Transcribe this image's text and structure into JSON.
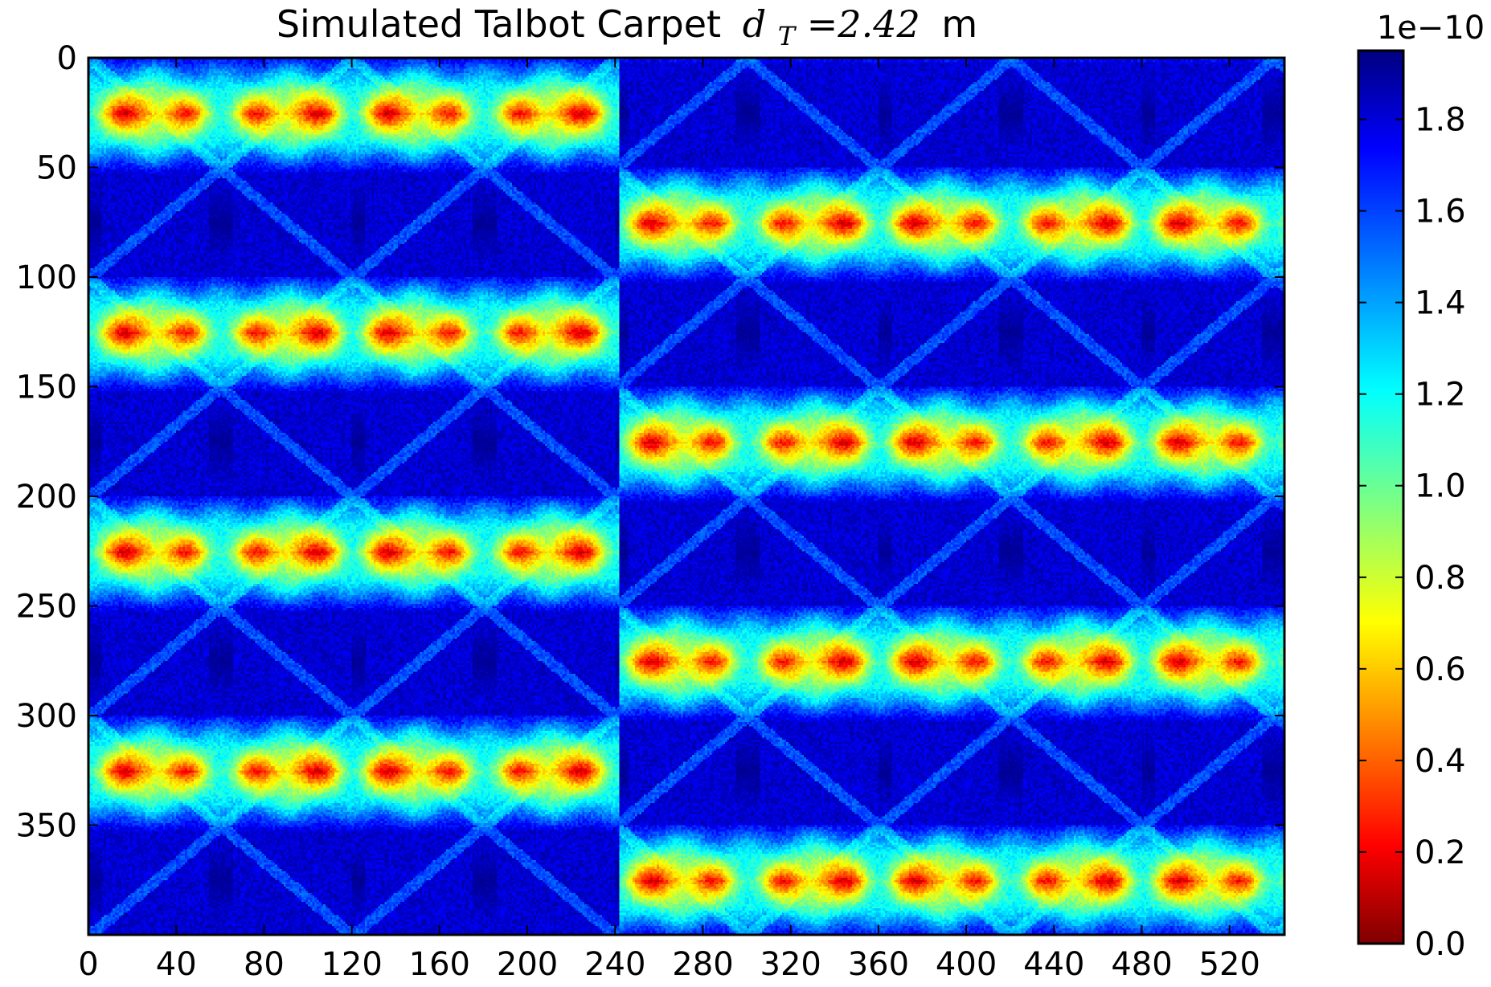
{
  "chart_data": {
    "type": "heatmap",
    "title_prefix": "Simulated Talbot Carpet",
    "title_var": "d",
    "title_sub": "T",
    "title_eq": "=2.42",
    "title_unit": "m",
    "x_ticks": [
      "0",
      "40",
      "80",
      "120",
      "160",
      "200",
      "240",
      "280",
      "320",
      "360",
      "400",
      "440",
      "480",
      "520"
    ],
    "x_tick_values": [
      0,
      40,
      80,
      120,
      160,
      200,
      240,
      280,
      320,
      360,
      400,
      440,
      480,
      520
    ],
    "y_ticks": [
      "0",
      "50",
      "100",
      "150",
      "200",
      "250",
      "300",
      "350"
    ],
    "y_tick_values": [
      0,
      50,
      100,
      150,
      200,
      250,
      300,
      350
    ],
    "xlim": [
      0,
      545
    ],
    "ylim": [
      0,
      400
    ],
    "colormap": "jet",
    "colorbar": {
      "offset_label": "1e−10",
      "ticks": [
        "0.0",
        "0.2",
        "0.4",
        "0.6",
        "0.8",
        "1.0",
        "1.2",
        "1.4",
        "1.6",
        "1.8"
      ],
      "tick_values": [
        0.0,
        0.2,
        0.4,
        0.6,
        0.8,
        1.0,
        1.2,
        1.4,
        1.6,
        1.8
      ],
      "range": [
        0.0,
        1.95
      ]
    },
    "pattern": {
      "grating_period_x": 120,
      "half_talbot_rows": 50,
      "bright_band_centers_left": [
        25,
        125,
        225,
        325
      ],
      "bright_band_centers_right": [
        75,
        175,
        275,
        375
      ],
      "left_right_split_x": 242,
      "peak_value": 1.95
    }
  }
}
